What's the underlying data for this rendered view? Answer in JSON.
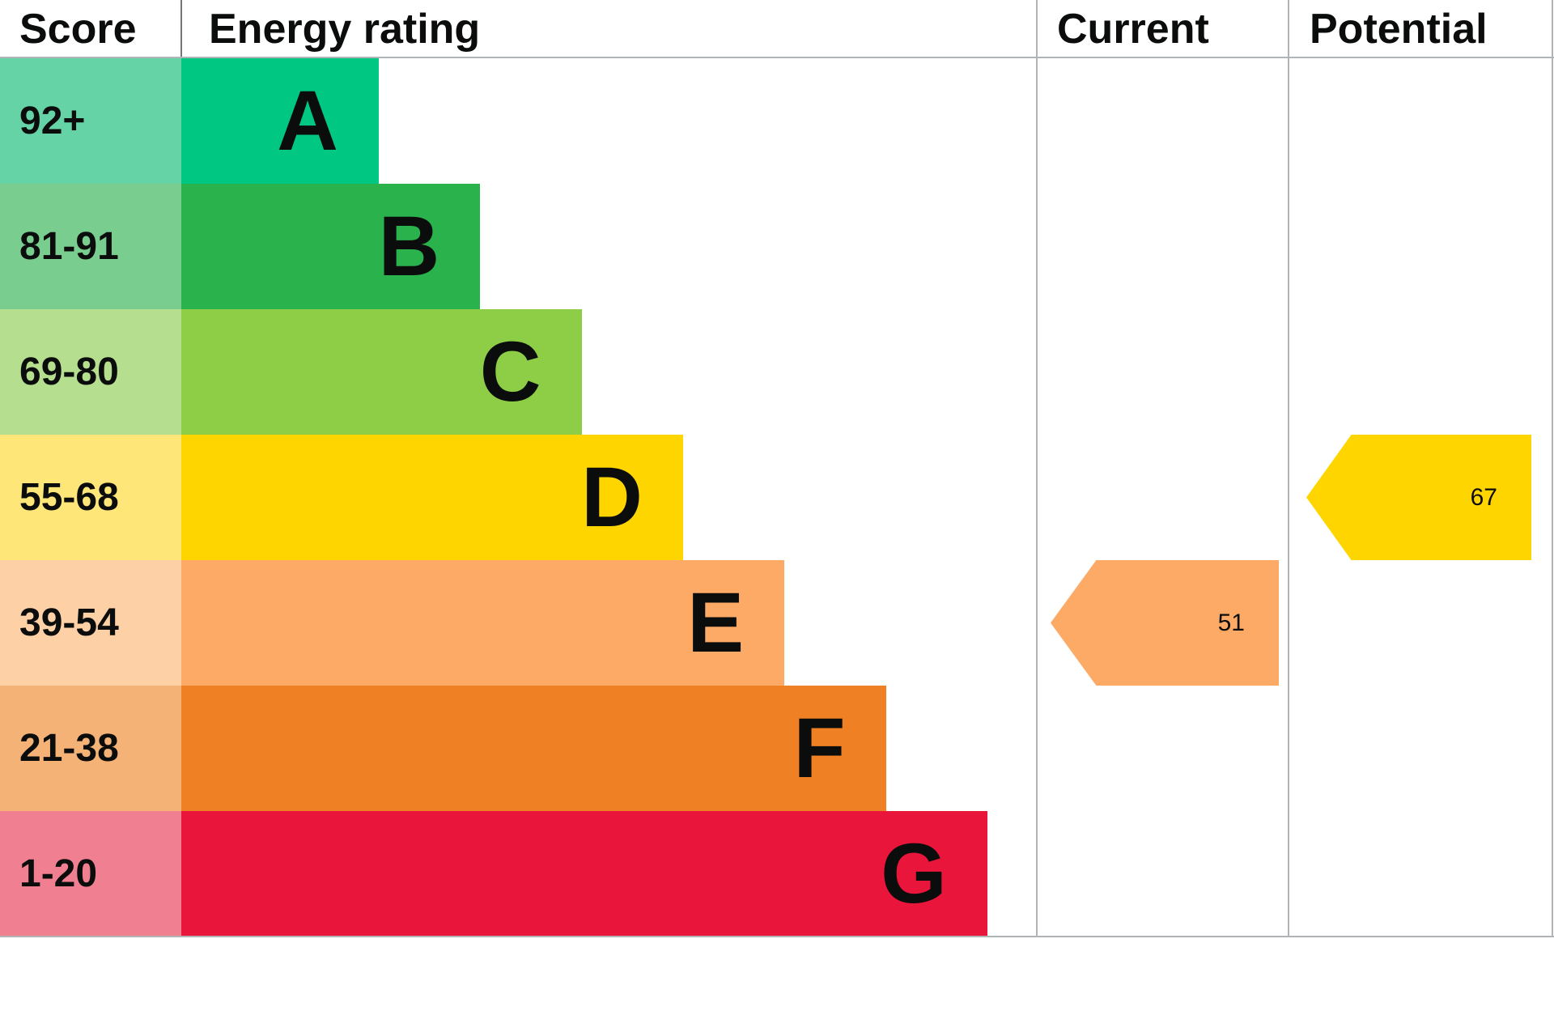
{
  "header": {
    "score": "Score",
    "energy_rating": "Energy rating",
    "current": "Current",
    "potential": "Potential"
  },
  "chart_data": {
    "type": "bar",
    "title": "Energy rating",
    "columns": [
      "Score",
      "Energy rating",
      "Current",
      "Potential"
    ],
    "bands": [
      {
        "letter": "A",
        "score_range": "92+",
        "color": "#00c781",
        "score_bg": "#66d3a6"
      },
      {
        "letter": "B",
        "score_range": "81-91",
        "color": "#2ab24d",
        "score_bg": "#79cd8e"
      },
      {
        "letter": "C",
        "score_range": "69-80",
        "color": "#8dce46",
        "score_bg": "#b5de8e"
      },
      {
        "letter": "D",
        "score_range": "55-68",
        "color": "#ffd500",
        "score_bg": "#ffe678"
      },
      {
        "letter": "E",
        "score_range": "39-54",
        "color": "#fcaa65",
        "score_bg": "#fdd0a6"
      },
      {
        "letter": "F",
        "score_range": "21-38",
        "color": "#ef8023",
        "score_bg": "#f4b277"
      },
      {
        "letter": "G",
        "score_range": "1-20",
        "color": "#e9153b",
        "score_bg": "#f17f92"
      }
    ],
    "markers": {
      "current": {
        "label": "Current",
        "value": 51,
        "band": "E",
        "color": "#fcaa65"
      },
      "potential": {
        "label": "Potential",
        "value": 67,
        "band": "D",
        "color": "#ffd500"
      }
    },
    "layout": {
      "legend": "none",
      "grid": "column dividers only",
      "direction": "horizontal bars, widest = worst rating"
    }
  },
  "colors": {
    "divider": "#b1b4b6",
    "header_divider": "#757575",
    "text": "#0b0c0c",
    "background": "#ffffff"
  }
}
